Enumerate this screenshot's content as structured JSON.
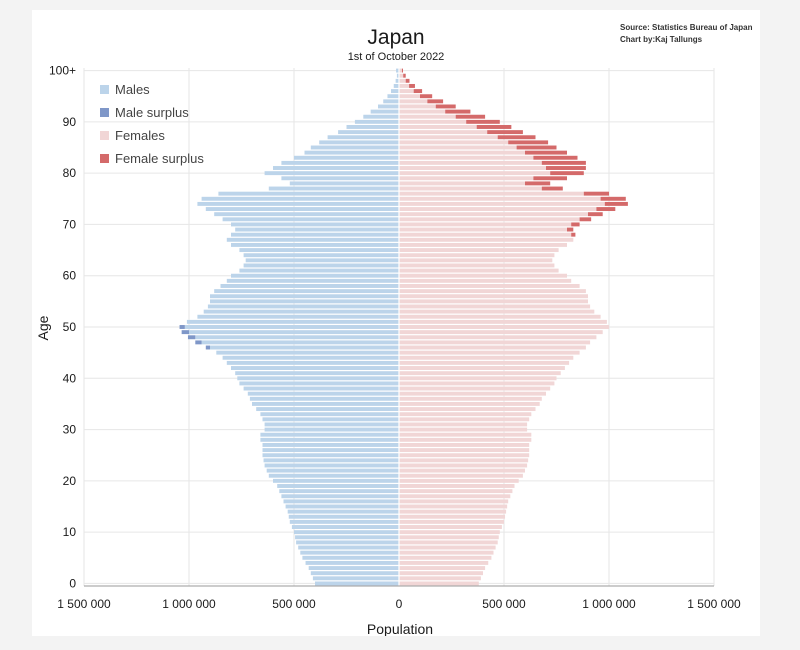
{
  "chart_data": {
    "type": "bar",
    "orientation": "horizontal-population-pyramid",
    "title": "Japan",
    "subtitle": "1st of October 2022",
    "source_line1": "Source: Statistics Bureau of Japan",
    "source_line2": "Chart by:Kaj Tallungs",
    "xlabel": "Population",
    "ylabel": "Age",
    "xlim": [
      -1500000,
      1500000
    ],
    "ylim": [
      0,
      100
    ],
    "x_ticks": [
      {
        "value": -1500000,
        "label": "1 500 000"
      },
      {
        "value": -1000000,
        "label": "1 000 000"
      },
      {
        "value": -500000,
        "label": "500 000"
      },
      {
        "value": 0,
        "label": "0"
      },
      {
        "value": 500000,
        "label": "500 000"
      },
      {
        "value": 1000000,
        "label": "1 000 000"
      },
      {
        "value": 1500000,
        "label": "1 500 000"
      }
    ],
    "y_ticks": [
      {
        "value": 0,
        "label": "0"
      },
      {
        "value": 10,
        "label": "10"
      },
      {
        "value": 20,
        "label": "20"
      },
      {
        "value": 30,
        "label": "30"
      },
      {
        "value": 40,
        "label": "40"
      },
      {
        "value": 50,
        "label": "50"
      },
      {
        "value": 60,
        "label": "60"
      },
      {
        "value": 70,
        "label": "70"
      },
      {
        "value": 80,
        "label": "80"
      },
      {
        "value": 90,
        "label": "90"
      },
      {
        "value": 100,
        "label": "100+"
      }
    ],
    "grid": true,
    "legend_position": "top-left",
    "legend": [
      {
        "name": "Males",
        "color": "#bcd4ea"
      },
      {
        "name": "Male surplus",
        "color": "#7f97c8"
      },
      {
        "name": "Females",
        "color": "#f1d6d6"
      },
      {
        "name": "Female surplus",
        "color": "#d46a6a"
      }
    ],
    "ages": [
      0,
      1,
      2,
      3,
      4,
      5,
      6,
      7,
      8,
      9,
      10,
      11,
      12,
      13,
      14,
      15,
      16,
      17,
      18,
      19,
      20,
      21,
      22,
      23,
      24,
      25,
      26,
      27,
      28,
      29,
      30,
      31,
      32,
      33,
      34,
      35,
      36,
      37,
      38,
      39,
      40,
      41,
      42,
      43,
      44,
      45,
      46,
      47,
      48,
      49,
      50,
      51,
      52,
      53,
      54,
      55,
      56,
      57,
      58,
      59,
      60,
      61,
      62,
      63,
      64,
      65,
      66,
      67,
      68,
      69,
      70,
      71,
      72,
      73,
      74,
      75,
      76,
      77,
      78,
      79,
      80,
      81,
      82,
      83,
      84,
      85,
      86,
      87,
      88,
      89,
      90,
      91,
      92,
      93,
      94,
      95,
      96,
      97,
      98,
      99,
      100
    ],
    "series": [
      {
        "name": "Males",
        "values": [
          400000,
          410000,
          420000,
          430000,
          445000,
          460000,
          470000,
          480000,
          490000,
          495000,
          500000,
          510000,
          520000,
          525000,
          530000,
          540000,
          550000,
          560000,
          570000,
          580000,
          600000,
          620000,
          630000,
          640000,
          645000,
          650000,
          650000,
          650000,
          660000,
          660000,
          640000,
          640000,
          650000,
          660000,
          680000,
          700000,
          710000,
          720000,
          740000,
          760000,
          770000,
          780000,
          800000,
          820000,
          840000,
          870000,
          900000,
          940000,
          970000,
          1000000,
          1020000,
          1010000,
          960000,
          930000,
          910000,
          900000,
          900000,
          880000,
          850000,
          820000,
          800000,
          760000,
          740000,
          730000,
          740000,
          760000,
          800000,
          820000,
          800000,
          780000,
          800000,
          840000,
          880000,
          920000,
          960000,
          940000,
          860000,
          620000,
          520000,
          560000,
          640000,
          600000,
          560000,
          500000,
          450000,
          420000,
          380000,
          340000,
          290000,
          250000,
          210000,
          170000,
          135000,
          100000,
          75000,
          55000,
          38000,
          25000,
          16000,
          10000,
          14000
        ]
      },
      {
        "name": "Male surplus",
        "values": [
          0,
          0,
          0,
          0,
          0,
          0,
          0,
          0,
          0,
          0,
          0,
          0,
          0,
          0,
          0,
          0,
          0,
          0,
          0,
          0,
          0,
          0,
          0,
          0,
          0,
          0,
          0,
          0,
          0,
          0,
          0,
          0,
          0,
          0,
          0,
          0,
          0,
          0,
          0,
          0,
          0,
          0,
          0,
          0,
          0,
          0,
          20000,
          30000,
          35000,
          35000,
          25000,
          0,
          0,
          0,
          0,
          0,
          0,
          0,
          0,
          0,
          0,
          0,
          0,
          0,
          0,
          0,
          0,
          0,
          0,
          0,
          0,
          0,
          0,
          0,
          0,
          0,
          0,
          0,
          0,
          0,
          0,
          0,
          0,
          0,
          0,
          0,
          0,
          0,
          0,
          0,
          0,
          0,
          0,
          0,
          0,
          0,
          0,
          0,
          0,
          0,
          0
        ]
      },
      {
        "name": "Females",
        "values": [
          380000,
          390000,
          400000,
          410000,
          425000,
          440000,
          450000,
          460000,
          470000,
          475000,
          480000,
          490000,
          500000,
          505000,
          510000,
          515000,
          520000,
          530000,
          540000,
          550000,
          570000,
          590000,
          600000,
          610000,
          615000,
          620000,
          620000,
          620000,
          630000,
          630000,
          610000,
          610000,
          620000,
          630000,
          650000,
          670000,
          680000,
          700000,
          720000,
          740000,
          750000,
          770000,
          790000,
          810000,
          830000,
          860000,
          890000,
          910000,
          940000,
          970000,
          1000000,
          990000,
          960000,
          930000,
          910000,
          900000,
          900000,
          890000,
          860000,
          820000,
          800000,
          760000,
          740000,
          730000,
          740000,
          760000,
          800000,
          830000,
          820000,
          800000,
          820000,
          860000,
          900000,
          940000,
          980000,
          960000,
          880000,
          680000,
          600000,
          640000,
          720000,
          700000,
          680000,
          640000,
          600000,
          560000,
          520000,
          470000,
          420000,
          370000,
          320000,
          270000,
          220000,
          175000,
          135000,
          100000,
          70000,
          48000,
          32000,
          20000,
          14000
        ]
      },
      {
        "name": "Female surplus",
        "values": [
          0,
          0,
          0,
          0,
          0,
          0,
          0,
          0,
          0,
          0,
          0,
          0,
          0,
          0,
          0,
          0,
          0,
          0,
          0,
          0,
          0,
          0,
          0,
          0,
          0,
          0,
          0,
          0,
          0,
          0,
          0,
          0,
          0,
          0,
          0,
          0,
          0,
          0,
          0,
          0,
          0,
          0,
          0,
          0,
          0,
          0,
          0,
          0,
          0,
          0,
          0,
          0,
          0,
          0,
          0,
          0,
          0,
          0,
          0,
          0,
          0,
          0,
          0,
          0,
          0,
          0,
          0,
          0,
          20000,
          30000,
          40000,
          55000,
          70000,
          90000,
          110000,
          120000,
          120000,
          100000,
          120000,
          160000,
          160000,
          190000,
          210000,
          210000,
          200000,
          190000,
          190000,
          180000,
          170000,
          165000,
          160000,
          140000,
          120000,
          95000,
          75000,
          58000,
          40000,
          28000,
          18000,
          12000,
          5000
        ]
      }
    ]
  }
}
